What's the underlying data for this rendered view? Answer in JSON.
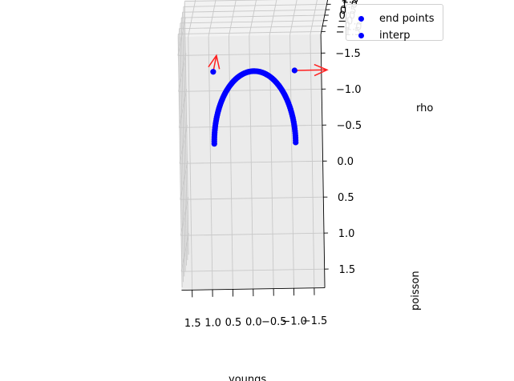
{
  "chart_data": {
    "type": "scatter",
    "projection": "3d",
    "axes": {
      "x": {
        "label": "youngs",
        "ticks": [
          "1.5",
          "1.0",
          "0.5",
          "0.0",
          "−0.5",
          "−1.0",
          "−1.5"
        ]
      },
      "y": {
        "label": "poisson",
        "ticks": [
          "−1.5",
          "−1.0",
          "−0.5",
          "0.0",
          "0.5",
          "1.0",
          "1.5"
        ]
      },
      "z": {
        "label": "rho",
        "ticks": [
          "−1.5",
          "−1.0",
          "−0.5",
          "0.0",
          "0.5",
          "1.0",
          "1.5"
        ]
      }
    },
    "grid": true,
    "legend": {
      "placement": "top-right",
      "entries": [
        {
          "label": "end points",
          "color": "#0000ff"
        },
        {
          "label": "interp",
          "color": "#0000ff"
        }
      ]
    },
    "series": [
      {
        "name": "end points",
        "color": "#0000ff",
        "points": [
          [
            -1.0,
            -1.0,
            0.0
          ],
          [
            1.0,
            -1.0,
            0.0
          ]
        ]
      },
      {
        "name": "interp",
        "color": "#0000ff",
        "curve": "half-circle of radius 1 in the youngs–poisson plane at rho = 0",
        "count": 100
      }
    ],
    "arrows": [
      {
        "color": "#ff2020",
        "from": [
          1.0,
          -1.0,
          0.0
        ],
        "to": [
          1.0,
          -1.0,
          1.5
        ]
      },
      {
        "color": "#ff2020",
        "from": [
          -1.0,
          -1.0,
          0.0
        ],
        "to": [
          -1.8,
          -1.0,
          0.0
        ]
      }
    ]
  }
}
